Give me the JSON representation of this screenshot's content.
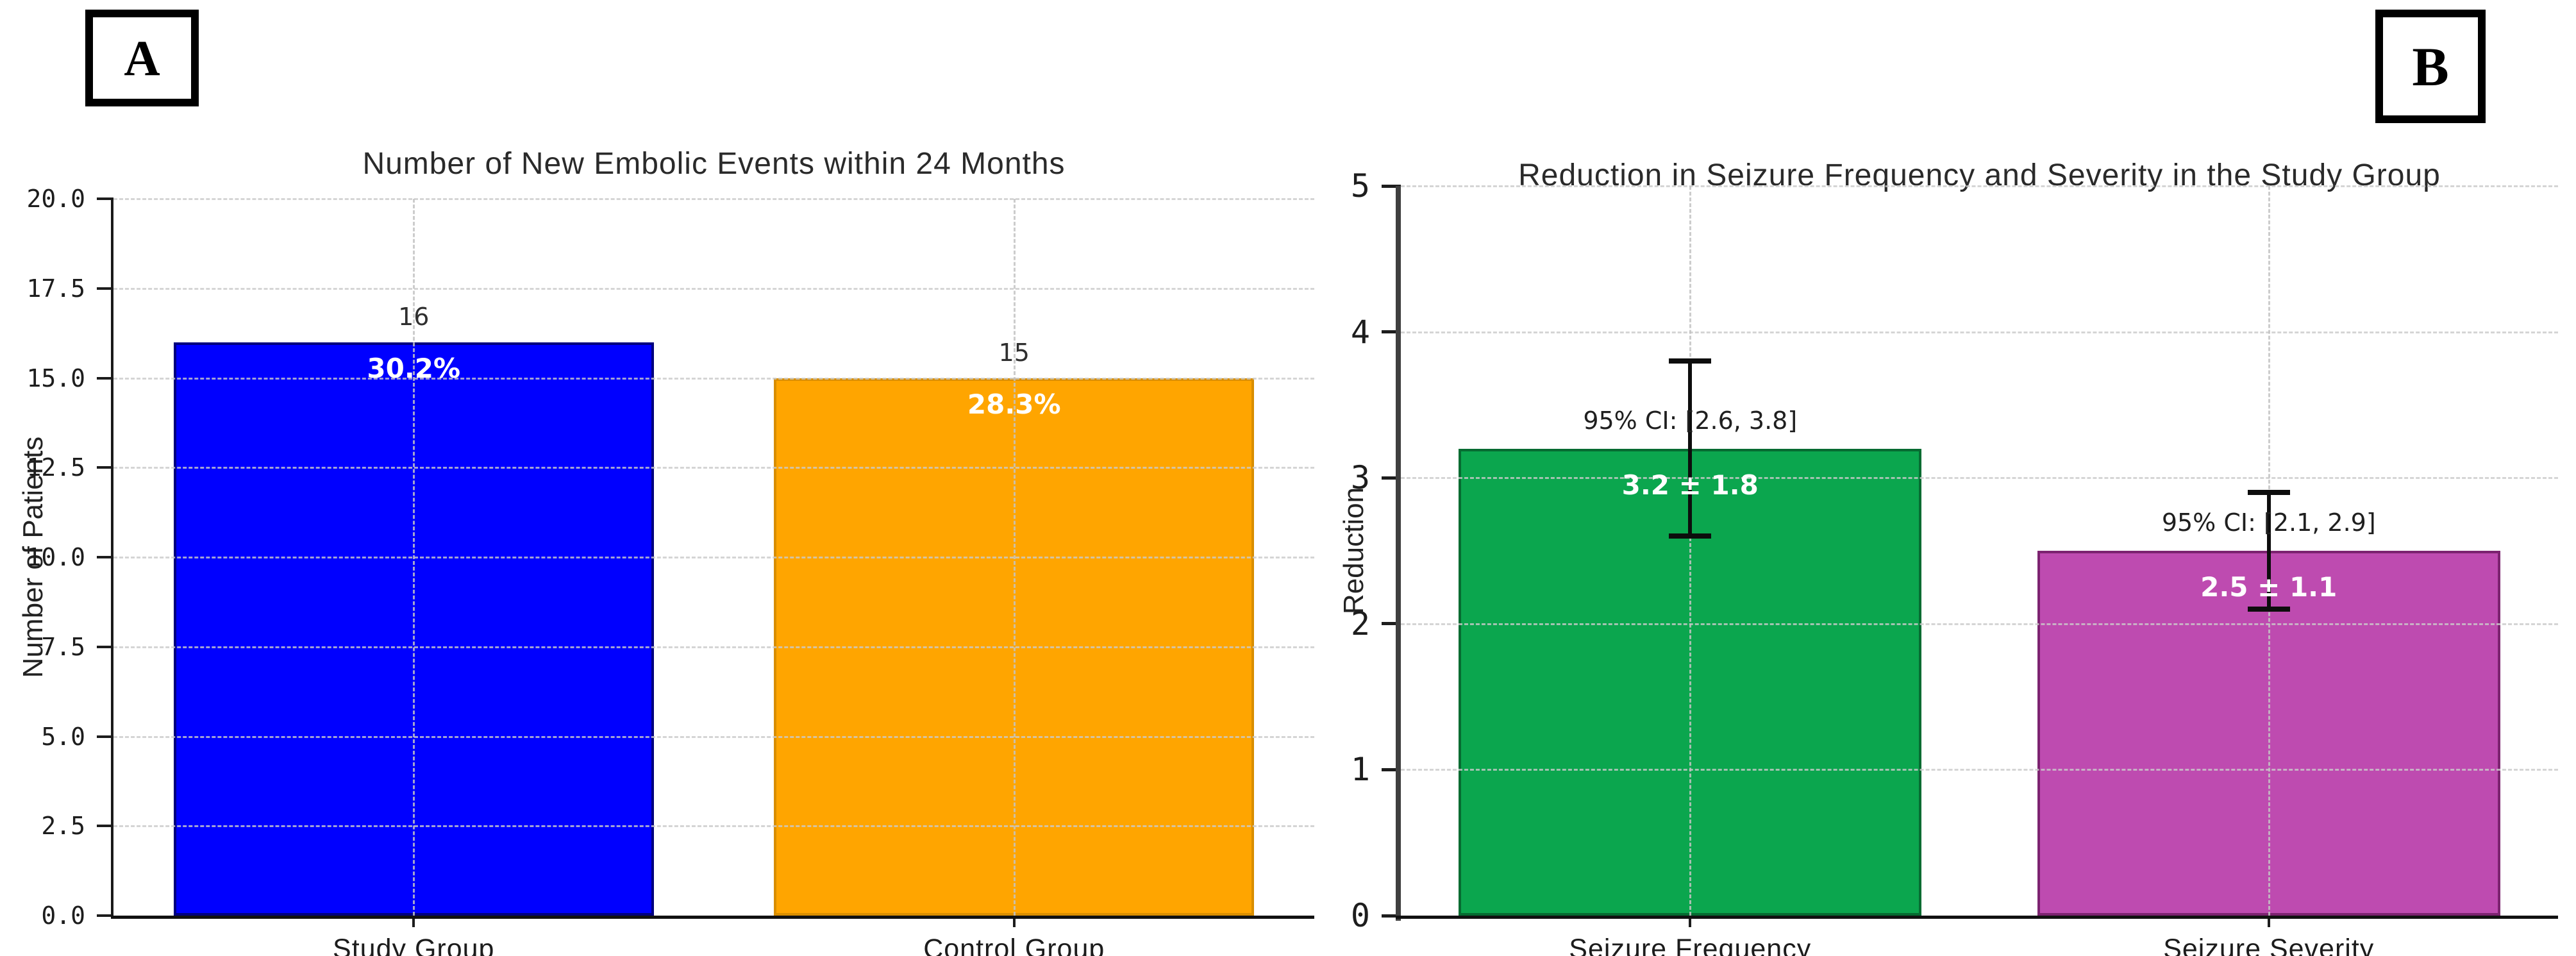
{
  "panel_labels": [
    "A",
    "B"
  ],
  "chart_data": [
    {
      "type": "bar",
      "panel": "A",
      "title": "Number of New Embolic Events within 24 Months",
      "ylabel": "Number of Patients",
      "xlabel": "",
      "categories": [
        "Study Group",
        "Control Group"
      ],
      "values": [
        16,
        15
      ],
      "count_labels": [
        "16",
        "15"
      ],
      "percent_labels": [
        "30.2%",
        "28.3%"
      ],
      "bar_colors": [
        "#0000ff",
        "#ffa500"
      ],
      "bar_edge_colors": [
        "#00007f",
        "#d98e00"
      ],
      "ylim": [
        0,
        20
      ],
      "yticks": [
        "0.0",
        "2.5",
        "5.0",
        "7.5",
        "10.0",
        "12.5",
        "15.0",
        "17.5",
        "20.0"
      ],
      "grid": true,
      "legend": "none"
    },
    {
      "type": "bar",
      "panel": "B",
      "title": "Reduction in Seizure Frequency and Severity in the Study Group",
      "ylabel": "Reduction",
      "xlabel": "",
      "categories": [
        "Seizure Frequency",
        "Seizure Severity"
      ],
      "values": [
        3.2,
        2.5
      ],
      "error_low": [
        2.6,
        2.1
      ],
      "error_high": [
        3.8,
        2.9
      ],
      "ci_labels": [
        "95% CI: [2.6, 3.8]",
        "95% CI: [2.1, 2.9]"
      ],
      "value_labels": [
        "3.2 ± 1.8",
        "2.5 ± 1.1"
      ],
      "bar_colors": [
        "#0ba64e",
        "#be4bb0"
      ],
      "bar_edge_colors": [
        "#066b31",
        "#7c2370"
      ],
      "ylim": [
        0,
        5
      ],
      "yticks": [
        "0",
        "1",
        "2",
        "3",
        "4",
        "5"
      ],
      "grid": true,
      "legend": "none"
    }
  ]
}
